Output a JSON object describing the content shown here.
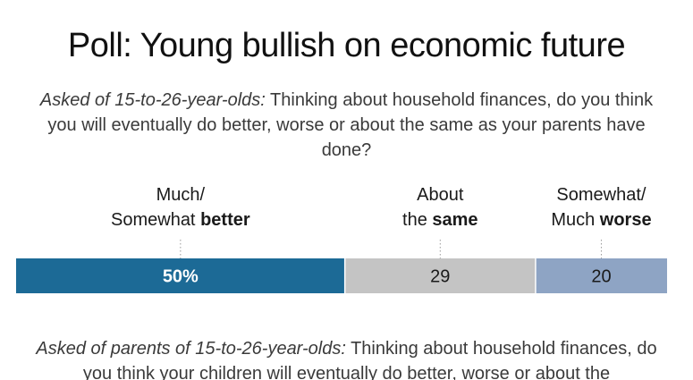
{
  "title": "Poll: Young bullish on economic future",
  "question1": {
    "lead": "Asked of 15-to-26-year-olds:",
    "text": "Thinking about household finances, do you think you will eventually do better, worse or about the same as your parents have done?"
  },
  "question2": {
    "lead": "Asked of parents of 15-to-26-year-olds:",
    "text": "Thinking about household finances, do you think your children will eventually do better, worse or about the"
  },
  "categories": [
    {
      "line1": "Much/",
      "line2_plain": "Somewhat ",
      "line2_bold": "better"
    },
    {
      "line1": "About",
      "line2_plain": "the ",
      "line2_bold": "same"
    },
    {
      "line1": "Somewhat/",
      "line2_plain": "Much ",
      "line2_bold": "worse"
    }
  ],
  "chart_data": {
    "type": "bar",
    "orientation": "horizontal-stacked",
    "title": "Poll: Young bullish on economic future",
    "categories": [
      "Much/Somewhat better",
      "About the same",
      "Somewhat/Much worse"
    ],
    "values": [
      50,
      29,
      20
    ],
    "value_labels": [
      "50%",
      "29",
      "20"
    ],
    "colors": [
      "#1c6a96",
      "#c4c4c4",
      "#8ea4c4"
    ],
    "label_colors": [
      "#ffffff",
      "#1a1a1a",
      "#1a1a1a"
    ]
  }
}
